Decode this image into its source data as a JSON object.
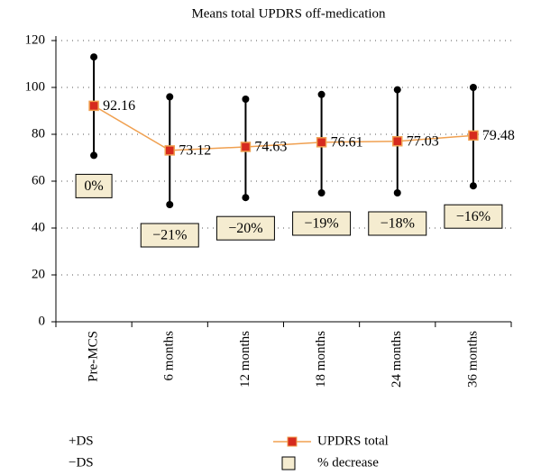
{
  "chart_data": {
    "type": "line",
    "title": "Means total UPDRS off-medication",
    "categories": [
      "Pre-MCS",
      "6 months",
      "12 months",
      "18 months",
      "24 months",
      "36 months"
    ],
    "series": [
      {
        "name": "UPDRS total",
        "color": "#f0a050",
        "marker_color": "#d62a1e",
        "values": [
          92.16,
          73.12,
          74.63,
          76.61,
          77.03,
          79.48
        ]
      },
      {
        "name": "+DS",
        "color": "#000000",
        "values": [
          113,
          96,
          95,
          97,
          99,
          100
        ]
      },
      {
        "name": "−DS",
        "color": "#000000",
        "values": [
          71,
          50,
          53,
          55,
          55,
          58
        ]
      }
    ],
    "decrease": {
      "name": "% decrease",
      "color": "#f5ecd0",
      "values": [
        0,
        -21,
        -20,
        -19,
        -18,
        -16
      ],
      "value_labels": [
        "0%",
        "−21%",
        "−20%",
        "−19%",
        "−18%",
        "−16%"
      ]
    },
    "ylim": [
      0,
      120
    ],
    "yticks": [
      0,
      20,
      40,
      60,
      80,
      100,
      120
    ],
    "grid": true
  }
}
